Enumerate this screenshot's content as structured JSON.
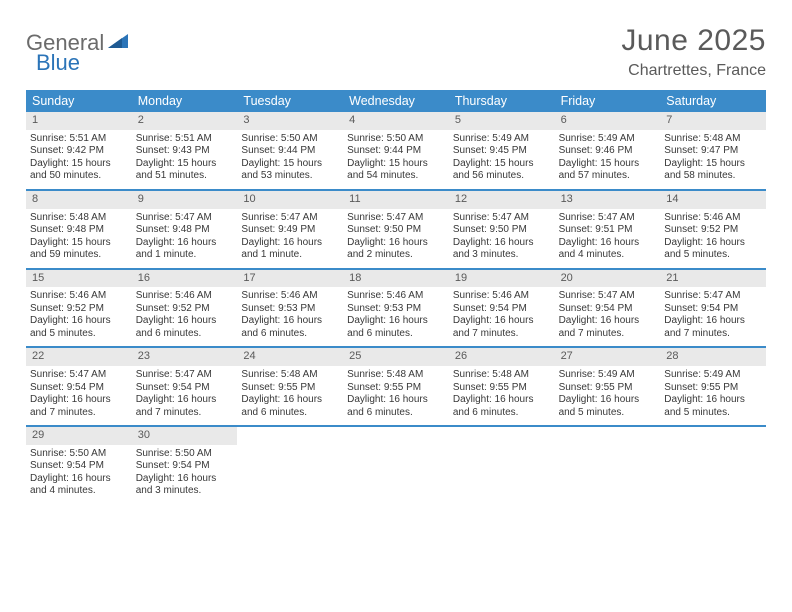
{
  "brand": {
    "part1": "General",
    "part2": "Blue"
  },
  "title": "June 2025",
  "location": "Chartrettes, France",
  "colors": {
    "header_bar": "#3b8bc9",
    "day_band": "#e9e9e9",
    "text_gray": "#5a5a5a",
    "text_body": "#383838",
    "brand_blue": "#2b74b8",
    "brand_gray": "#6b6b6b"
  },
  "weekdays": [
    "Sunday",
    "Monday",
    "Tuesday",
    "Wednesday",
    "Thursday",
    "Friday",
    "Saturday"
  ],
  "days": [
    {
      "n": "1",
      "sr": "Sunrise: 5:51 AM",
      "ss": "Sunset: 9:42 PM",
      "d1": "Daylight: 15 hours",
      "d2": "and 50 minutes."
    },
    {
      "n": "2",
      "sr": "Sunrise: 5:51 AM",
      "ss": "Sunset: 9:43 PM",
      "d1": "Daylight: 15 hours",
      "d2": "and 51 minutes."
    },
    {
      "n": "3",
      "sr": "Sunrise: 5:50 AM",
      "ss": "Sunset: 9:44 PM",
      "d1": "Daylight: 15 hours",
      "d2": "and 53 minutes."
    },
    {
      "n": "4",
      "sr": "Sunrise: 5:50 AM",
      "ss": "Sunset: 9:44 PM",
      "d1": "Daylight: 15 hours",
      "d2": "and 54 minutes."
    },
    {
      "n": "5",
      "sr": "Sunrise: 5:49 AM",
      "ss": "Sunset: 9:45 PM",
      "d1": "Daylight: 15 hours",
      "d2": "and 56 minutes."
    },
    {
      "n": "6",
      "sr": "Sunrise: 5:49 AM",
      "ss": "Sunset: 9:46 PM",
      "d1": "Daylight: 15 hours",
      "d2": "and 57 minutes."
    },
    {
      "n": "7",
      "sr": "Sunrise: 5:48 AM",
      "ss": "Sunset: 9:47 PM",
      "d1": "Daylight: 15 hours",
      "d2": "and 58 minutes."
    },
    {
      "n": "8",
      "sr": "Sunrise: 5:48 AM",
      "ss": "Sunset: 9:48 PM",
      "d1": "Daylight: 15 hours",
      "d2": "and 59 minutes."
    },
    {
      "n": "9",
      "sr": "Sunrise: 5:47 AM",
      "ss": "Sunset: 9:48 PM",
      "d1": "Daylight: 16 hours",
      "d2": "and 1 minute."
    },
    {
      "n": "10",
      "sr": "Sunrise: 5:47 AM",
      "ss": "Sunset: 9:49 PM",
      "d1": "Daylight: 16 hours",
      "d2": "and 1 minute."
    },
    {
      "n": "11",
      "sr": "Sunrise: 5:47 AM",
      "ss": "Sunset: 9:50 PM",
      "d1": "Daylight: 16 hours",
      "d2": "and 2 minutes."
    },
    {
      "n": "12",
      "sr": "Sunrise: 5:47 AM",
      "ss": "Sunset: 9:50 PM",
      "d1": "Daylight: 16 hours",
      "d2": "and 3 minutes."
    },
    {
      "n": "13",
      "sr": "Sunrise: 5:47 AM",
      "ss": "Sunset: 9:51 PM",
      "d1": "Daylight: 16 hours",
      "d2": "and 4 minutes."
    },
    {
      "n": "14",
      "sr": "Sunrise: 5:46 AM",
      "ss": "Sunset: 9:52 PM",
      "d1": "Daylight: 16 hours",
      "d2": "and 5 minutes."
    },
    {
      "n": "15",
      "sr": "Sunrise: 5:46 AM",
      "ss": "Sunset: 9:52 PM",
      "d1": "Daylight: 16 hours",
      "d2": "and 5 minutes."
    },
    {
      "n": "16",
      "sr": "Sunrise: 5:46 AM",
      "ss": "Sunset: 9:52 PM",
      "d1": "Daylight: 16 hours",
      "d2": "and 6 minutes."
    },
    {
      "n": "17",
      "sr": "Sunrise: 5:46 AM",
      "ss": "Sunset: 9:53 PM",
      "d1": "Daylight: 16 hours",
      "d2": "and 6 minutes."
    },
    {
      "n": "18",
      "sr": "Sunrise: 5:46 AM",
      "ss": "Sunset: 9:53 PM",
      "d1": "Daylight: 16 hours",
      "d2": "and 6 minutes."
    },
    {
      "n": "19",
      "sr": "Sunrise: 5:46 AM",
      "ss": "Sunset: 9:54 PM",
      "d1": "Daylight: 16 hours",
      "d2": "and 7 minutes."
    },
    {
      "n": "20",
      "sr": "Sunrise: 5:47 AM",
      "ss": "Sunset: 9:54 PM",
      "d1": "Daylight: 16 hours",
      "d2": "and 7 minutes."
    },
    {
      "n": "21",
      "sr": "Sunrise: 5:47 AM",
      "ss": "Sunset: 9:54 PM",
      "d1": "Daylight: 16 hours",
      "d2": "and 7 minutes."
    },
    {
      "n": "22",
      "sr": "Sunrise: 5:47 AM",
      "ss": "Sunset: 9:54 PM",
      "d1": "Daylight: 16 hours",
      "d2": "and 7 minutes."
    },
    {
      "n": "23",
      "sr": "Sunrise: 5:47 AM",
      "ss": "Sunset: 9:54 PM",
      "d1": "Daylight: 16 hours",
      "d2": "and 7 minutes."
    },
    {
      "n": "24",
      "sr": "Sunrise: 5:48 AM",
      "ss": "Sunset: 9:55 PM",
      "d1": "Daylight: 16 hours",
      "d2": "and 6 minutes."
    },
    {
      "n": "25",
      "sr": "Sunrise: 5:48 AM",
      "ss": "Sunset: 9:55 PM",
      "d1": "Daylight: 16 hours",
      "d2": "and 6 minutes."
    },
    {
      "n": "26",
      "sr": "Sunrise: 5:48 AM",
      "ss": "Sunset: 9:55 PM",
      "d1": "Daylight: 16 hours",
      "d2": "and 6 minutes."
    },
    {
      "n": "27",
      "sr": "Sunrise: 5:49 AM",
      "ss": "Sunset: 9:55 PM",
      "d1": "Daylight: 16 hours",
      "d2": "and 5 minutes."
    },
    {
      "n": "28",
      "sr": "Sunrise: 5:49 AM",
      "ss": "Sunset: 9:55 PM",
      "d1": "Daylight: 16 hours",
      "d2": "and 5 minutes."
    },
    {
      "n": "29",
      "sr": "Sunrise: 5:50 AM",
      "ss": "Sunset: 9:54 PM",
      "d1": "Daylight: 16 hours",
      "d2": "and 4 minutes."
    },
    {
      "n": "30",
      "sr": "Sunrise: 5:50 AM",
      "ss": "Sunset: 9:54 PM",
      "d1": "Daylight: 16 hours",
      "d2": "and 3 minutes."
    }
  ],
  "layout": {
    "first_weekday_index": 0,
    "weeks": 5,
    "trailing_empty": 5
  }
}
